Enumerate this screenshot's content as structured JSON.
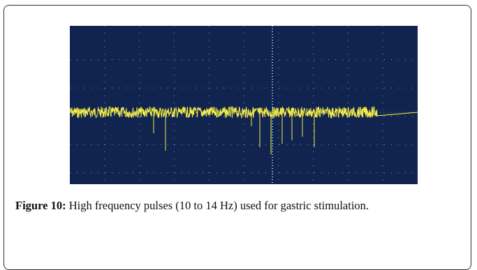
{
  "figure": {
    "label": "Figure 10:",
    "caption": "High frequency pulses (10 to 14 Hz) used for gastric stimulation."
  }
}
